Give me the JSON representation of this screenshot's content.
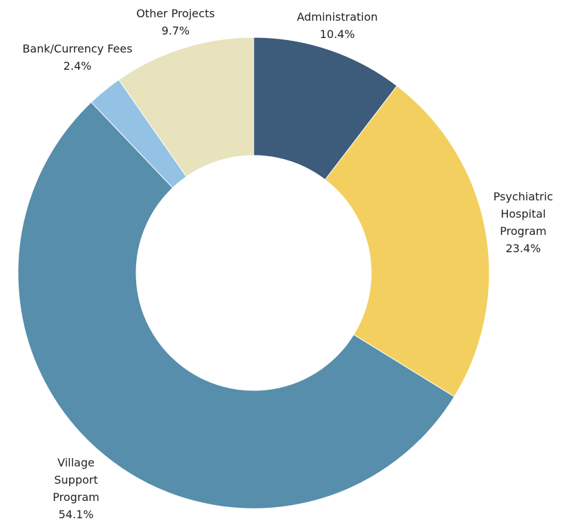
{
  "chart_data": {
    "type": "donut",
    "categories": [
      "Administration",
      "Psychiatric Hospital Program",
      "Village Support Program",
      "Bank/Currency Fees",
      "Other Projects"
    ],
    "values": [
      10.4,
      23.4,
      54.1,
      2.4,
      9.7
    ],
    "value_labels": [
      "10.4%",
      "23.4%",
      "54.1%",
      "2.4%",
      "9.7%"
    ],
    "colors": [
      "#3d5b7a",
      "#f3cf5f",
      "#568eab",
      "#94c2e5",
      "#e8e2bd"
    ]
  }
}
